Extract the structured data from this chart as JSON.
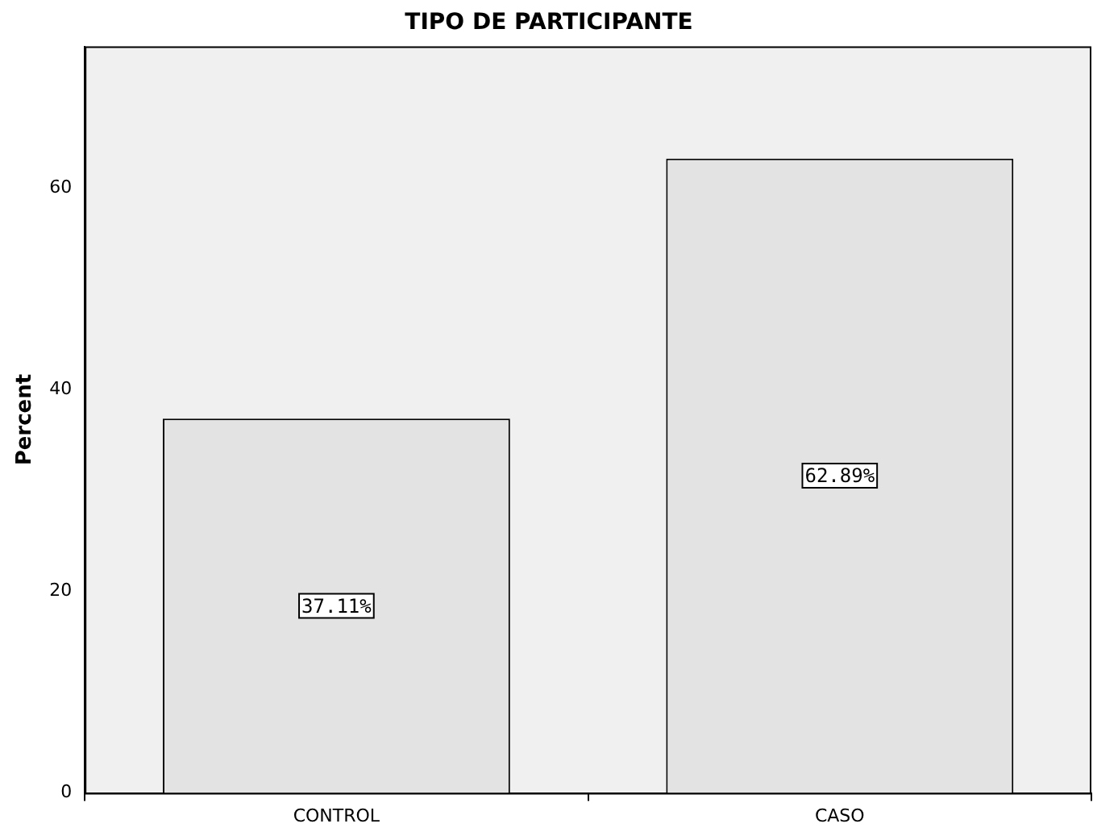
{
  "chart_data": {
    "type": "bar",
    "title": "TIPO DE PARTICIPANTE",
    "ylabel": "Percent",
    "categories": [
      "CONTROL",
      "CASO"
    ],
    "values": [
      37.11,
      62.89
    ],
    "value_labels": [
      "37.11%",
      "62.89%"
    ],
    "color": "#e3e3e3",
    "ylim": [
      0,
      74
    ],
    "yticks": [
      0,
      20,
      40,
      60
    ],
    "grid": false,
    "legend": false
  }
}
